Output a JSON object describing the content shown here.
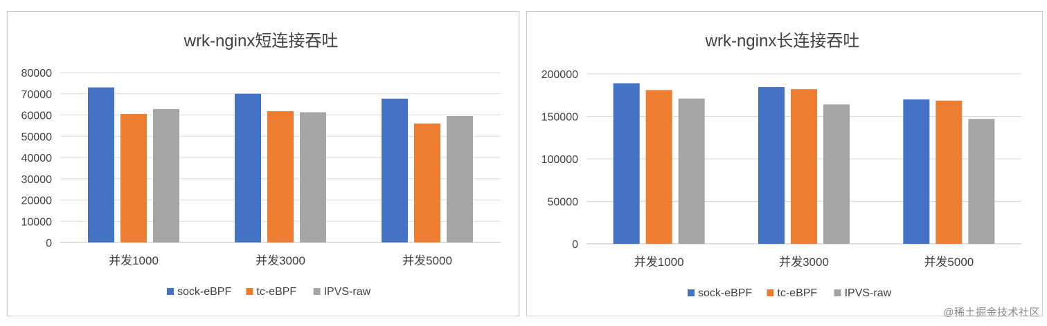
{
  "chart_data": [
    {
      "type": "bar",
      "title": "wrk-nginx短连接吞吐",
      "categories": [
        "并发1000",
        "并发3000",
        "并发5000"
      ],
      "series": [
        {
          "name": "sock-eBPF",
          "color": "#4472c4",
          "values": [
            73000,
            70000,
            67700
          ]
        },
        {
          "name": "tc-eBPF",
          "color": "#ed7d31",
          "values": [
            60500,
            61800,
            56000
          ]
        },
        {
          "name": "IPVS-raw",
          "color": "#a5a5a5",
          "values": [
            62800,
            61300,
            59500
          ]
        }
      ],
      "ylim": [
        0,
        80000
      ],
      "yticks": [
        0,
        10000,
        20000,
        30000,
        40000,
        50000,
        60000,
        70000,
        80000
      ],
      "grid": true,
      "legend": "bottom"
    },
    {
      "type": "bar",
      "title": "wrk-nginx长连接吞吐",
      "categories": [
        "并发1000",
        "并发3000",
        "并发5000"
      ],
      "series": [
        {
          "name": "sock-eBPF",
          "color": "#4472c4",
          "values": [
            189000,
            184500,
            170000
          ]
        },
        {
          "name": "tc-eBPF",
          "color": "#ed7d31",
          "values": [
            181000,
            182000,
            168500
          ]
        },
        {
          "name": "IPVS-raw",
          "color": "#a5a5a5",
          "values": [
            171000,
            164000,
            147000
          ]
        }
      ],
      "ylim": [
        0,
        200000
      ],
      "yticks": [
        0,
        50000,
        100000,
        150000,
        200000
      ],
      "grid": true,
      "legend": "bottom"
    }
  ],
  "watermark": "@稀土掘金技术社区"
}
